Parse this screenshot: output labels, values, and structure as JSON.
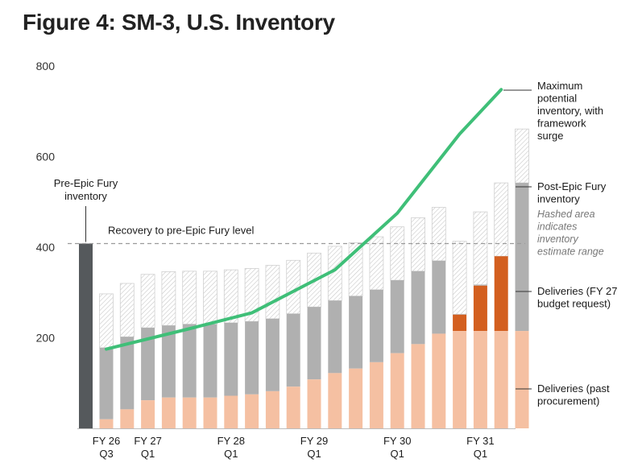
{
  "title": "Figure 4: SM-3, U.S. Inventory",
  "colors": {
    "pre_epic_bar": "#55595c",
    "past_procurement": "#f5c0a2",
    "budget_request": "#d35f1f",
    "post_epic_inventory": "#b0b0b0",
    "hashed_range": "#d0d0d0",
    "max_potential_line": "#3fbf78",
    "recovery_line": "#9a9a9a"
  },
  "chart_data": {
    "type": "bar",
    "title": "Figure 4: SM-3, U.S. Inventory",
    "xlabel": "",
    "ylabel": "",
    "ylim": [
      0,
      800
    ],
    "y_ticks": [
      200,
      400,
      600,
      800
    ],
    "grid": false,
    "x_tick_labels": [
      {
        "index": 1,
        "line1": "FY 26",
        "line2": "Q3"
      },
      {
        "index": 3,
        "line1": "FY 27",
        "line2": "Q1"
      },
      {
        "index": 7,
        "line1": "FY 28",
        "line2": "Q1"
      },
      {
        "index": 11,
        "line1": "FY 29",
        "line2": "Q1"
      },
      {
        "index": 15,
        "line1": "FY 30",
        "line2": "Q1"
      },
      {
        "index": 19,
        "line1": "FY 31",
        "line2": "Q1"
      }
    ],
    "pre_epic_fury": {
      "value": 408,
      "label_line1": "Pre-Epic Fury",
      "label_line2": "inventory"
    },
    "recovery_level": {
      "value": 408,
      "label": "Recovery to pre-Epic Fury level"
    },
    "past_procurement": [
      20,
      42,
      62,
      68,
      68,
      68,
      72,
      75,
      82,
      92,
      108,
      122,
      132,
      146,
      166,
      186,
      209,
      215,
      215,
      215,
      215
    ],
    "budget_request": [
      0,
      0,
      0,
      0,
      0,
      0,
      0,
      0,
      0,
      0,
      0,
      0,
      0,
      0,
      0,
      0,
      0,
      36,
      100,
      165,
      0
    ],
    "post_epic_inventory": [
      178,
      202,
      222,
      227,
      230,
      230,
      233,
      236,
      242,
      253,
      268,
      282,
      292,
      306,
      327,
      347,
      370,
      252,
      317,
      380,
      542
    ],
    "estimate_top": [
      297,
      320,
      340,
      346,
      347,
      347,
      350,
      353,
      360,
      371,
      387,
      402,
      410,
      423,
      445,
      465,
      488,
      413,
      478,
      542,
      661
    ],
    "max_potential": [
      {
        "x": 1,
        "y": 175
      },
      {
        "x": 5,
        "y": 220
      },
      {
        "x": 8,
        "y": 255
      },
      {
        "x": 12,
        "y": 350
      },
      {
        "x": 15,
        "y": 475
      },
      {
        "x": 18,
        "y": 650
      },
      {
        "x": 20,
        "y": 748
      }
    ],
    "legend": {
      "max_potential": [
        "Maximum",
        "potential",
        "inventory, with",
        "framework",
        "surge"
      ],
      "post_epic": [
        "Post-Epic Fury",
        "inventory"
      ],
      "hashed_note": [
        "Hashed area",
        "indicates",
        "inventory",
        "estimate range"
      ],
      "budget_request": [
        "Deliveries (FY 27",
        "budget request)"
      ],
      "past_procurement": [
        "Deliveries (past",
        "procurement)"
      ]
    }
  }
}
